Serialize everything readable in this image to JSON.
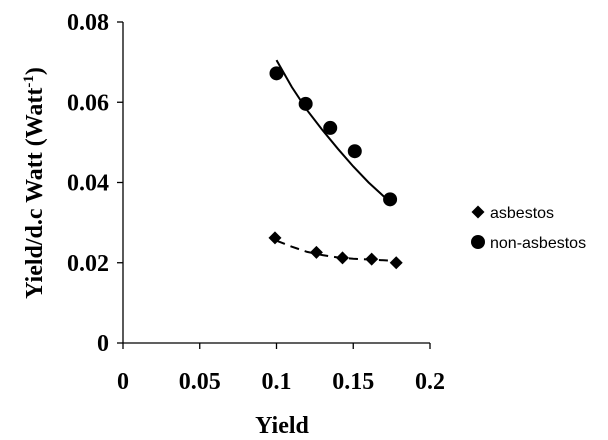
{
  "chart_data": {
    "type": "scatter",
    "xlabel": "Yield",
    "ylabel_main": "Yield/d.c Watt (Watt",
    "ylabel_sup": "-1",
    "ylabel_close": ")",
    "xlim": [
      0,
      0.2
    ],
    "ylim": [
      0,
      0.08
    ],
    "x_ticks": [
      "0",
      "0.05",
      "0.1",
      "0.15",
      "0.2"
    ],
    "y_ticks": [
      "0",
      "0.02",
      "0.04",
      "0.06",
      "0.08"
    ],
    "grid": false,
    "legend_position": "right",
    "series": [
      {
        "name": "asbestos",
        "marker": "diamond",
        "points": [
          {
            "x": 0.099,
            "y": 0.0262
          },
          {
            "x": 0.126,
            "y": 0.0226
          },
          {
            "x": 0.143,
            "y": 0.0212
          },
          {
            "x": 0.162,
            "y": 0.0209
          },
          {
            "x": 0.178,
            "y": 0.02
          }
        ],
        "trend": {
          "style": "dashed",
          "points": [
            {
              "x": 0.1,
              "y": 0.0255
            },
            {
              "x": 0.11,
              "y": 0.024
            },
            {
              "x": 0.12,
              "y": 0.0227
            },
            {
              "x": 0.13,
              "y": 0.0219
            },
            {
              "x": 0.14,
              "y": 0.0213
            },
            {
              "x": 0.15,
              "y": 0.021
            },
            {
              "x": 0.16,
              "y": 0.0208
            },
            {
              "x": 0.17,
              "y": 0.0206
            },
            {
              "x": 0.176,
              "y": 0.0205
            }
          ]
        }
      },
      {
        "name": "non-asbestos",
        "marker": "circle",
        "points": [
          {
            "x": 0.1,
            "y": 0.0672
          },
          {
            "x": 0.119,
            "y": 0.0596
          },
          {
            "x": 0.135,
            "y": 0.0536
          },
          {
            "x": 0.151,
            "y": 0.0478
          },
          {
            "x": 0.174,
            "y": 0.0358
          }
        ],
        "trend": {
          "style": "solid",
          "points": [
            {
              "x": 0.1,
              "y": 0.0705
            },
            {
              "x": 0.11,
              "y": 0.0638
            },
            {
              "x": 0.12,
              "y": 0.058
            },
            {
              "x": 0.13,
              "y": 0.053
            },
            {
              "x": 0.14,
              "y": 0.0484
            },
            {
              "x": 0.15,
              "y": 0.044
            },
            {
              "x": 0.16,
              "y": 0.04
            },
            {
              "x": 0.17,
              "y": 0.0365
            },
            {
              "x": 0.175,
              "y": 0.0355
            }
          ]
        }
      }
    ]
  },
  "colors": {
    "axis": "#000000",
    "series": "#000000"
  }
}
